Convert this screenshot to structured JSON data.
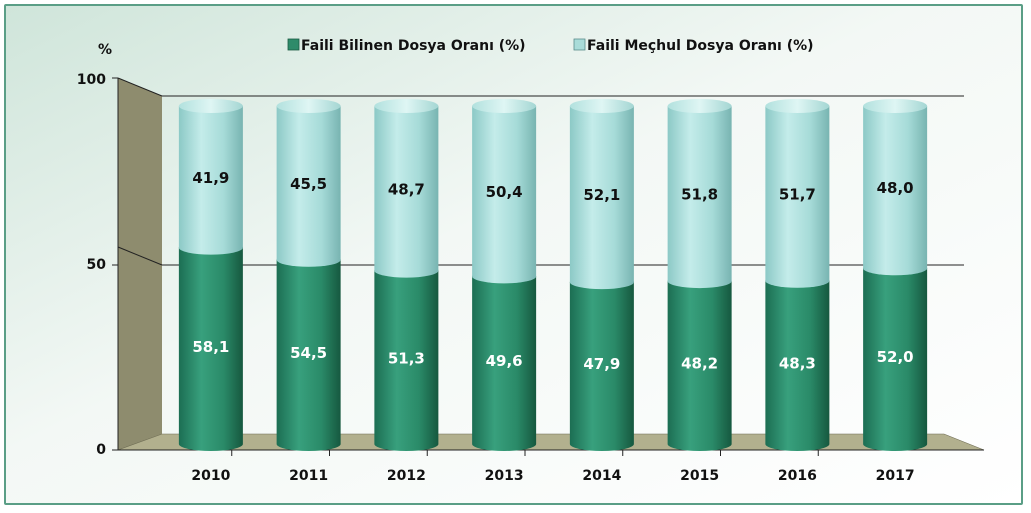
{
  "chart_data": {
    "type": "bar",
    "stacked": true,
    "title": "",
    "ylabel": "%",
    "xlabel": "",
    "ylim": [
      0,
      100
    ],
    "yticks": [
      "0",
      "50",
      "100"
    ],
    "categories": [
      "2010",
      "2011",
      "2012",
      "2013",
      "2014",
      "2015",
      "2016",
      "2017"
    ],
    "series": [
      {
        "name": "Faili Bilinen Dosya Oranı (%)",
        "values": [
          58.1,
          54.5,
          51.3,
          49.6,
          47.9,
          48.2,
          48.3,
          52.0
        ],
        "labels": [
          "58,1",
          "54,5",
          "51,3",
          "49,6",
          "47,9",
          "48,2",
          "48,3",
          "52,0"
        ],
        "color": "#2e8b6a"
      },
      {
        "name": "Faili Meçhul Dosya Oranı (%)",
        "values": [
          41.9,
          45.5,
          48.7,
          50.4,
          52.1,
          51.8,
          51.7,
          48.0
        ],
        "labels": [
          "41,9",
          "45,5",
          "48,7",
          "50,4",
          "52,1",
          "51,8",
          "51,7",
          "48,0"
        ],
        "color": "#a9dcd9"
      }
    ],
    "legend_position": "top"
  },
  "colors": {
    "background_gradient_start": "#cfe5da",
    "background_gradient_end": "#ffffff",
    "wall": "#8e8c6e",
    "floor": "#b2b08e",
    "frame": "#5a9e86"
  }
}
